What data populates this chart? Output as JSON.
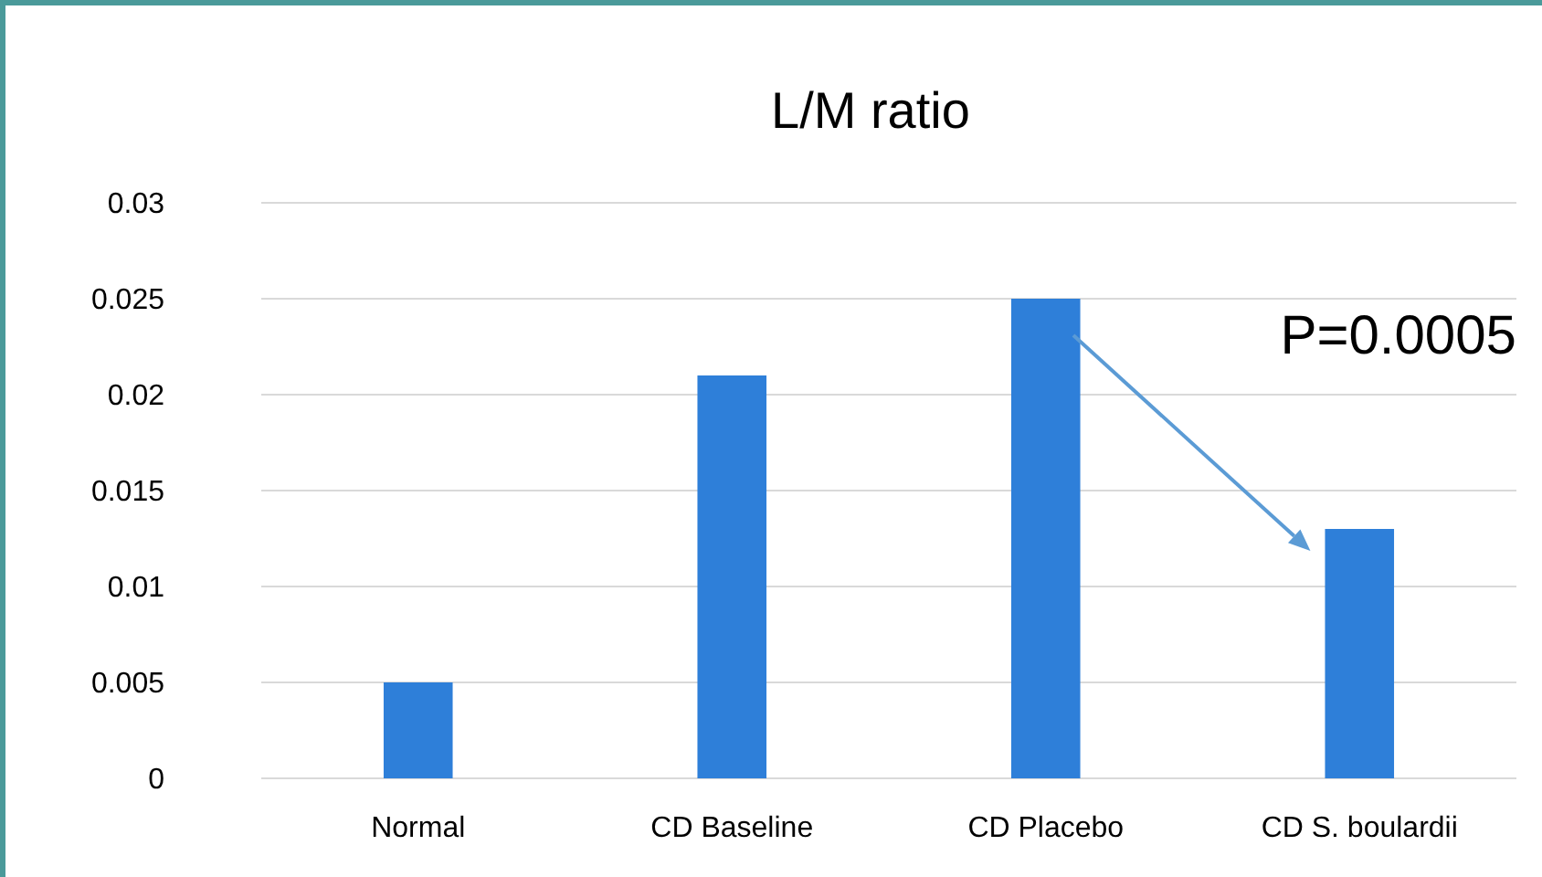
{
  "chart_data": {
    "type": "bar",
    "title": "L/M ratio",
    "categories": [
      "Normal",
      "CD Baseline",
      "CD Placebo",
      "CD S. boulardii"
    ],
    "values": [
      0.005,
      0.021,
      0.025,
      0.013
    ],
    "color": "#2e7fd9",
    "ylim": [
      0,
      0.03
    ],
    "yticks": [
      0,
      0.005,
      0.01,
      0.015,
      0.02,
      0.025,
      0.03
    ],
    "grid": "y",
    "annotations": [
      "P=0.0005"
    ]
  }
}
